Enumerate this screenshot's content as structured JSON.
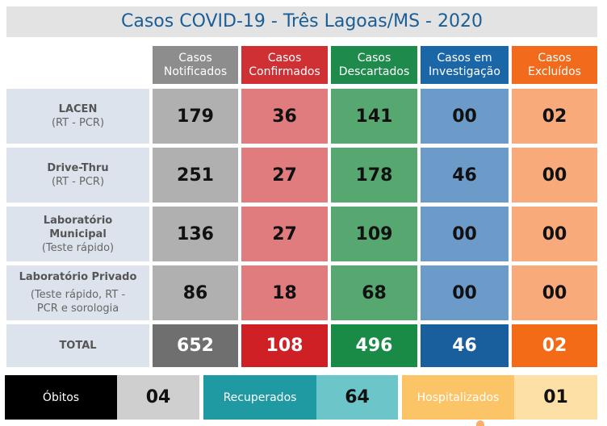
{
  "title": "Casos COVID-19 - Três Lagoas/MS - 2020",
  "headers": [
    [
      "Casos",
      "Notificados"
    ],
    [
      "Casos",
      "Confirmados"
    ],
    [
      "Casos",
      "Descartados"
    ],
    [
      "Casos em",
      "Investigação"
    ],
    [
      "Casos",
      "Excluídos"
    ]
  ],
  "rows": [
    {
      "name": [
        "LACEN"
      ],
      "sub": [
        "(RT - PCR)"
      ],
      "values": [
        "179",
        "36",
        "141",
        "00",
        "02"
      ]
    },
    {
      "name": [
        "Drive-Thru"
      ],
      "sub": [
        "(RT - PCR)"
      ],
      "values": [
        "251",
        "27",
        "178",
        "46",
        "00"
      ]
    },
    {
      "name": [
        "Laboratório",
        "Municipal"
      ],
      "sub": [
        "(Teste rápido)"
      ],
      "values": [
        "136",
        "27",
        "109",
        "00",
        "00"
      ]
    },
    {
      "name": [
        "Laboratório Privado"
      ],
      "sub": [
        "(Teste rápido, RT -",
        "PCR e sorologia"
      ],
      "values": [
        "86",
        "18",
        "68",
        "00",
        "00"
      ]
    }
  ],
  "total": {
    "label": "TOTAL",
    "values": [
      "652",
      "108",
      "496",
      "46",
      "02"
    ]
  },
  "footer": {
    "obitos_label": "Óbitos",
    "obitos_value": "04",
    "recuperados_label": "Recuperados",
    "recuperados_value": "64",
    "hospitalizados_label": "Hospitalizados",
    "hospitalizados_value": "01"
  },
  "colors": {
    "title_text": "#1b5e97",
    "notificados": "#8d8d8d",
    "confirmados": "#cf3033",
    "descartados": "#1e8a4b",
    "investigacao": "#1a66a6",
    "excluidos": "#f26a1b"
  }
}
